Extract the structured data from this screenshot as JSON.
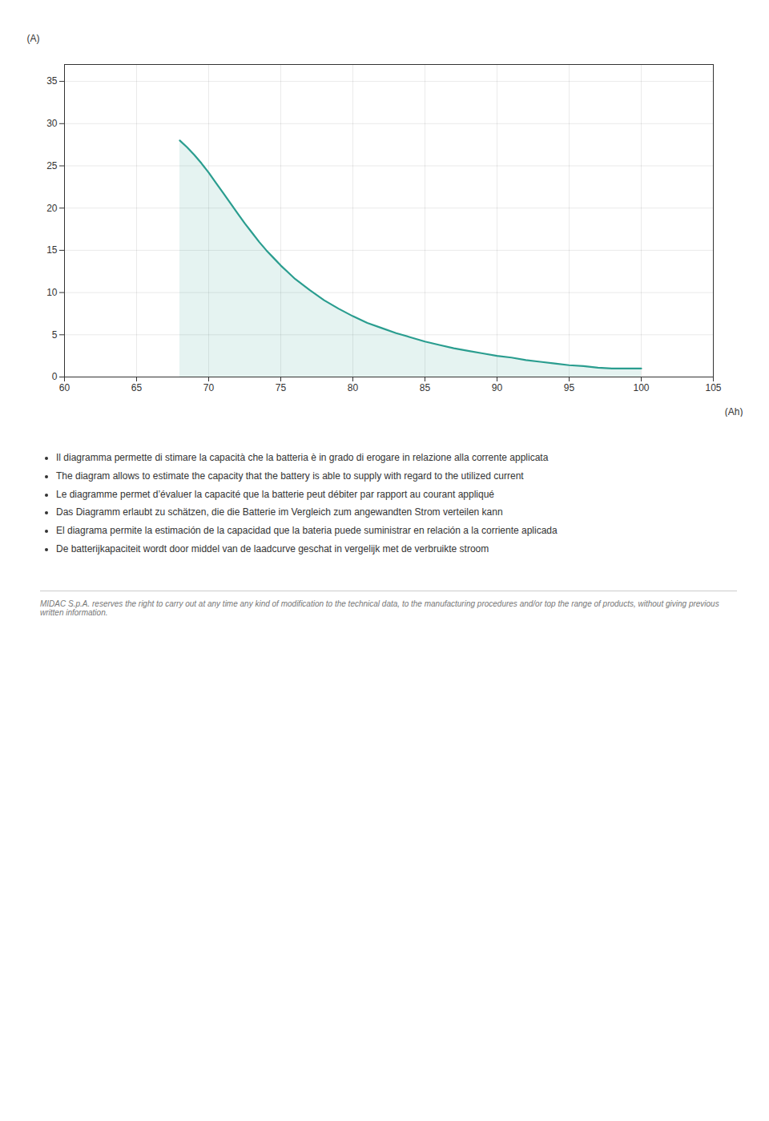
{
  "chart_data": {
    "type": "line",
    "x": [
      68.0,
      68.5,
      69.0,
      69.5,
      70.0,
      70.5,
      71.0,
      71.5,
      72.0,
      72.5,
      73.0,
      73.5,
      74.0,
      74.5,
      75.0,
      75.5,
      76.0,
      77.0,
      78.0,
      79.0,
      80.0,
      81.0,
      82.0,
      83.0,
      84.0,
      85.0,
      86.0,
      87.0,
      88.0,
      89.0,
      90.0,
      91.0,
      92.0,
      93.0,
      94.0,
      95.0,
      96.0,
      97.0,
      98.0,
      99.0,
      100.0
    ],
    "values": [
      28.0,
      27.2,
      26.3,
      25.3,
      24.2,
      23.0,
      21.8,
      20.6,
      19.4,
      18.2,
      17.1,
      16.0,
      15.0,
      14.1,
      13.2,
      12.4,
      11.6,
      10.3,
      9.1,
      8.1,
      7.2,
      6.4,
      5.8,
      5.2,
      4.7,
      4.2,
      3.8,
      3.4,
      3.1,
      2.8,
      2.5,
      2.3,
      2.0,
      1.8,
      1.6,
      1.4,
      1.3,
      1.1,
      1.0,
      1.0,
      1.0
    ],
    "color": "#2a9d8f",
    "x_label": "(Ah)",
    "y_label": "(A)",
    "xlim": [
      60,
      105
    ],
    "ylim": [
      0,
      37
    ],
    "xticks": [
      60,
      65,
      70,
      75,
      80,
      85,
      90,
      95,
      100,
      105
    ],
    "yticks": [
      0,
      5,
      10,
      15,
      20,
      25,
      30,
      35
    ],
    "grid": true,
    "annotations": [
      "Il diagramma permette di stimare la capacità che la batteria è in grado di erogare in relazione alla corrente applicata",
      "The diagram allows to estimate the capacity that the battery is able to supply with regard to the utilized current",
      "Le diagramme permet d’évaluer la capacité que la batterie peut débiter par rapport au courant appliqué",
      "Das Diagramm erlaubt zu schätzen, die die Batterie im Vergleich zum angewandten Strom verteilen kann",
      "El diagrama permite la estimación de la capacidad que la bateria puede suministrar en relación a la corriente aplicada",
      "De batterijkapaciteit wordt door middel van de laadcurve geschat in vergelijk met de verbruikte stroom"
    ],
    "caption": "MIDAC S.p.A. reserves the right to carry out at any time any kind of modification to the technical data, to the manufacturing procedures and/or top the range of products, without giving previous written information."
  }
}
